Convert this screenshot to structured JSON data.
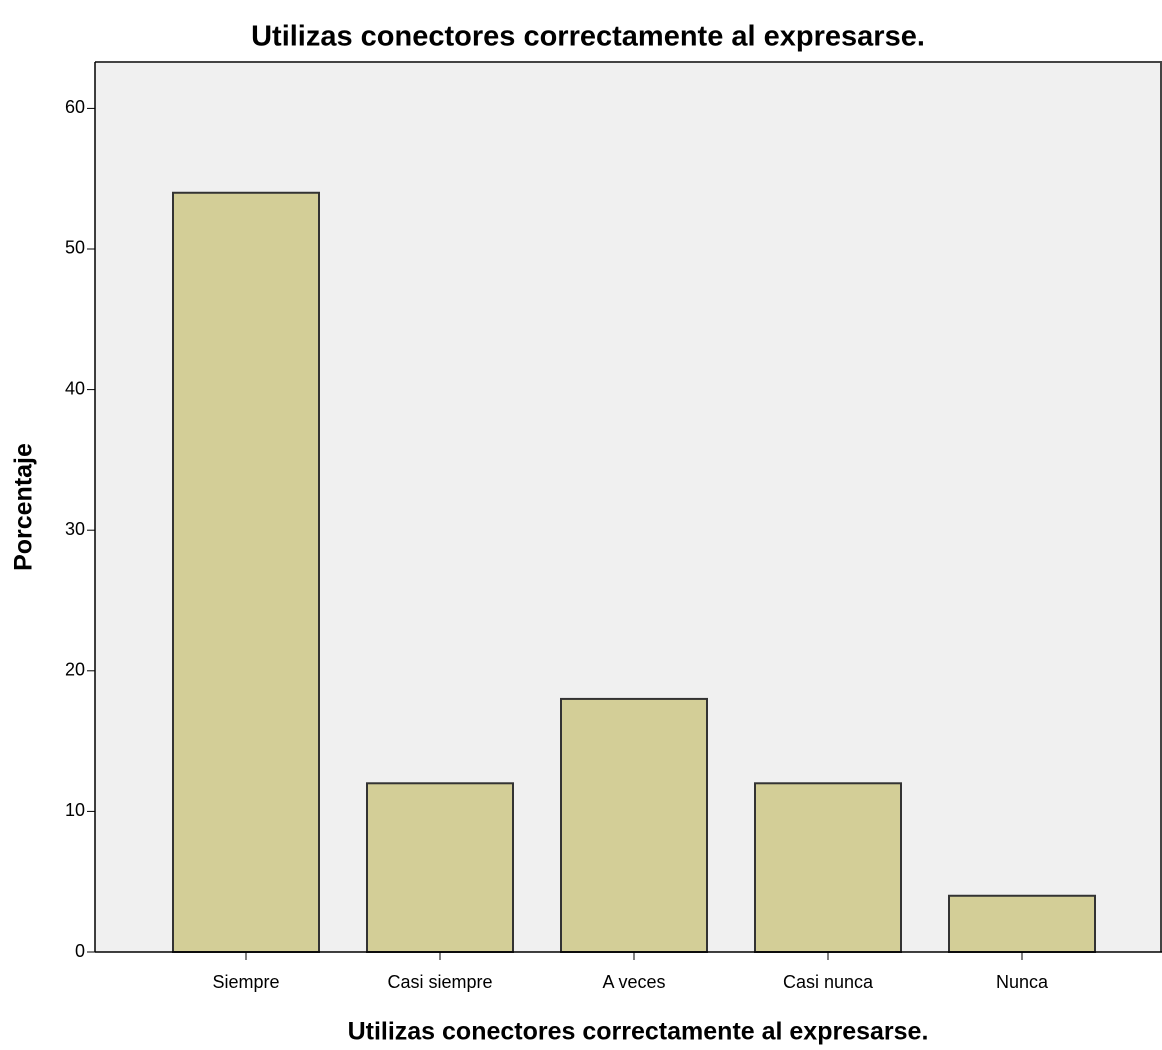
{
  "chart_data": {
    "type": "bar",
    "title": "Utilizas conectores correctamente al expresarse.",
    "xlabel": "Utilizas conectores correctamente al expresarse.",
    "ylabel": "Porcentaje",
    "categories": [
      "Siempre",
      "Casi siempre",
      "A veces",
      "Casi nunca",
      "Nunca"
    ],
    "values": [
      54,
      12,
      18,
      12,
      4
    ],
    "color": "#d3ce97",
    "ylim": [
      0,
      63.3
    ],
    "yticks": [
      0,
      10,
      20,
      30,
      40,
      50,
      60
    ],
    "grid": false
  }
}
